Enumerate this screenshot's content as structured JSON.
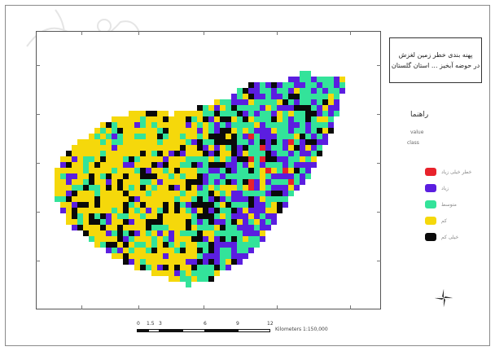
{
  "map_title": {
    "line1": "پهنه بندی خطر زمین لغزش",
    "line2": "در حوضه آبخیز ... استان گلستان"
  },
  "legend": {
    "heading": "راهنما",
    "sub1": "value",
    "sub2": "class",
    "classes": [
      {
        "label": "خطر خیلی زیاد",
        "color": "#e8222b"
      },
      {
        "label": "زیاد",
        "color": "#5b1ee0"
      },
      {
        "label": "متوسط",
        "color": "#33e39a"
      },
      {
        "label": "کم",
        "color": "#f5d80b"
      },
      {
        "label": "خیلی کم",
        "color": "#0a0a0a"
      }
    ]
  },
  "scale": {
    "labels": [
      "0",
      "1.5",
      "3",
      "6",
      "9",
      "12"
    ],
    "unit": "Kilometers",
    "ratio": "1:150,000"
  },
  "grid_ticks": {
    "top": [
      "",
      "",
      "",
      "",
      "",
      ""
    ],
    "bottom": [
      "",
      "",
      "",
      "",
      "",
      ""
    ],
    "left": [
      "",
      "",
      "",
      "",
      ""
    ],
    "right": [
      "",
      "",
      "",
      "",
      ""
    ]
  },
  "watermark_text": "سایت علمی"
}
